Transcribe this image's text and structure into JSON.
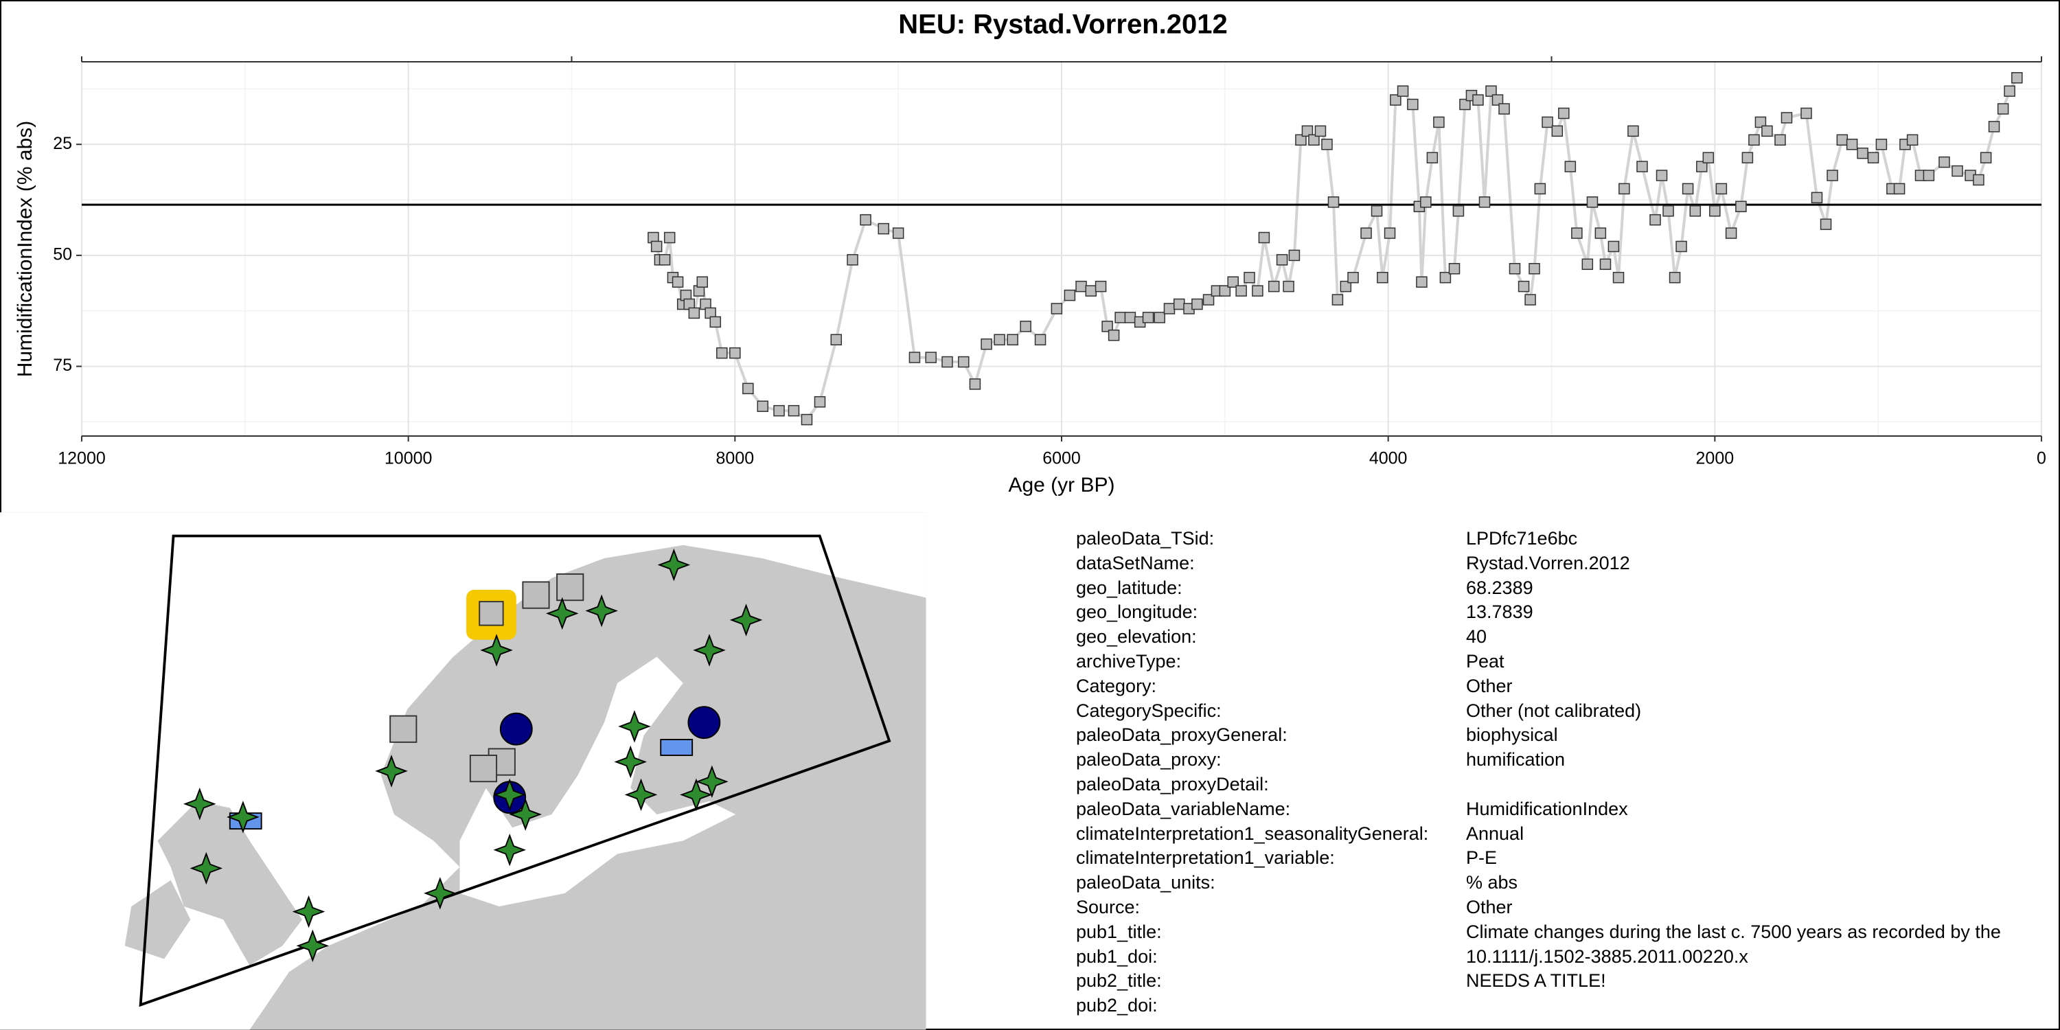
{
  "chart_data": {
    "type": "line",
    "title": "NEU: Rystad.Vorren.2012",
    "xlabel": "Age (yr BP)",
    "ylabel": "HumidificationIndex (% abs)",
    "xlim": [
      12000,
      0
    ],
    "ylim": [
      90.7,
      6.4
    ],
    "xticks": [
      12000,
      10000,
      8000,
      6000,
      4000,
      2000,
      0
    ],
    "xminor": [
      11000,
      9000,
      7000,
      5000,
      3000,
      1000
    ],
    "x2ticks": [
      12000,
      9000,
      3000,
      0
    ],
    "yticks": [
      25,
      50,
      75
    ],
    "yminor": [
      12.5,
      37.5,
      62.5,
      87.5
    ],
    "grid": true,
    "hline": 38.6,
    "line_color": "#d3d3d3",
    "marker_color": "#bdbdbd",
    "x": [
      8500,
      8480,
      8460,
      8430,
      8400,
      8380,
      8350,
      8320,
      8300,
      8280,
      8250,
      8220,
      8200,
      8180,
      8150,
      8120,
      8080,
      8000,
      7920,
      7830,
      7730,
      7640,
      7560,
      7480,
      7380,
      7280,
      7200,
      7090,
      7000,
      6900,
      6800,
      6700,
      6600,
      6530,
      6460,
      6380,
      6300,
      6220,
      6130,
      6030,
      5950,
      5880,
      5820,
      5760,
      5720,
      5680,
      5640,
      5580,
      5520,
      5470,
      5400,
      5340,
      5280,
      5220,
      5170,
      5100,
      5050,
      5000,
      4950,
      4900,
      4850,
      4800,
      4760,
      4700,
      4650,
      4610,
      4575,
      4535,
      4495,
      4455,
      4415,
      4375,
      4335,
      4310,
      4260,
      4215,
      4135,
      4070,
      4035,
      3990,
      3955,
      3910,
      3850,
      3810,
      3795,
      3770,
      3730,
      3690,
      3650,
      3595,
      3570,
      3530,
      3490,
      3450,
      3410,
      3370,
      3330,
      3290,
      3225,
      3170,
      3130,
      3105,
      3070,
      3025,
      2965,
      2925,
      2885,
      2845,
      2780,
      2750,
      2700,
      2670,
      2620,
      2590,
      2555,
      2500,
      2445,
      2365,
      2325,
      2285,
      2245,
      2205,
      2165,
      2120,
      2080,
      2040,
      2000,
      1960,
      1900,
      1840,
      1800,
      1760,
      1720,
      1680,
      1600,
      1560,
      1440,
      1375,
      1320,
      1280,
      1220,
      1160,
      1095,
      1030,
      980,
      915,
      870,
      835,
      790,
      740,
      690,
      595,
      515,
      435,
      385,
      340,
      290,
      235,
      195,
      150
    ],
    "values": [
      46,
      48,
      51,
      51,
      46,
      55,
      56,
      61,
      59,
      61,
      63,
      58,
      56,
      61,
      63,
      65,
      72,
      72,
      80,
      84,
      85,
      85,
      87,
      83,
      69,
      51,
      42,
      44,
      45,
      73,
      73,
      74,
      74,
      79,
      70,
      69,
      69,
      66,
      69,
      62,
      59,
      57,
      58,
      57,
      66,
      68,
      64,
      64,
      65,
      64,
      64,
      62,
      61,
      62,
      61,
      60,
      58,
      58,
      56,
      58,
      55,
      58,
      46,
      57,
      51,
      57,
      50,
      24,
      22,
      24,
      22,
      25,
      38,
      60,
      57,
      55,
      45,
      40,
      55,
      45,
      15,
      13,
      16,
      39,
      56,
      38,
      28,
      20,
      55,
      53,
      40,
      16,
      14,
      15,
      38,
      13,
      15,
      17,
      53,
      57,
      60,
      53,
      35,
      20,
      22,
      18,
      30,
      45,
      52,
      38,
      45,
      52,
      48,
      55,
      35,
      22,
      30,
      42,
      32,
      40,
      55,
      48,
      35,
      40,
      30,
      28,
      40,
      35,
      45,
      39,
      28,
      24,
      20,
      22,
      24,
      19,
      18,
      37,
      43,
      32,
      24,
      25,
      27,
      28,
      25,
      35,
      35,
      25,
      24,
      32,
      32,
      29,
      31,
      32,
      33,
      28,
      21,
      17,
      13,
      10
    ]
  },
  "metadata": {
    "rows": [
      [
        "paleoData_TSid:",
        "LPDfc71e6bc"
      ],
      [
        "dataSetName:",
        "Rystad.Vorren.2012"
      ],
      [
        "geo_latitude:",
        "68.2389"
      ],
      [
        "geo_longitude:",
        "13.7839"
      ],
      [
        "geo_elevation:",
        "40"
      ],
      [
        "archiveType:",
        "Peat"
      ],
      [
        "Category:",
        "Other"
      ],
      [
        "CategorySpecific:",
        "Other (not calibrated)"
      ],
      [
        "paleoData_proxyGeneral:",
        "biophysical"
      ],
      [
        "paleoData_proxy:",
        "humification"
      ],
      [
        "paleoData_proxyDetail:",
        null
      ],
      [
        "paleoData_variableName:",
        "HumidificationIndex"
      ],
      [
        "climateInterpretation1_seasonalityGeneral:",
        "Annual"
      ],
      [
        "climateInterpretation1_variable:",
        "P-E"
      ],
      [
        "paleoData_units:",
        "% abs"
      ],
      [
        "Source:",
        "Other"
      ],
      [
        "pub1_title:",
        "Climate changes during the last c. 7500 years as recorded by the"
      ],
      [
        "pub1_doi:",
        "10.1111/j.1502-3885.2011.00220.x"
      ],
      [
        "pub2_title:",
        "NEEDS A TITLE!"
      ],
      [
        "pub2_doi:",
        null
      ]
    ]
  }
}
